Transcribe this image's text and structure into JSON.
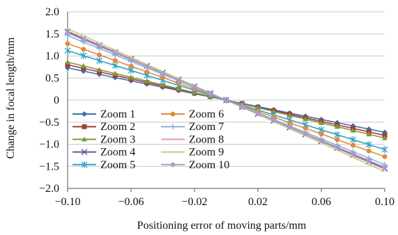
{
  "chart_data": {
    "type": "line",
    "title": "",
    "xlabel": "Positioning error of moving parts/mm",
    "ylabel": "Change in focal length/mm",
    "xlim": [
      -0.1,
      0.1
    ],
    "ylim": [
      -2.0,
      2.0
    ],
    "xticks": [
      -0.1,
      -0.06,
      -0.02,
      0.02,
      0.06,
      0.1
    ],
    "xtick_labels": [
      "−0.10",
      "−0.06",
      "−0.02",
      "0.02",
      "0.06",
      "0.10"
    ],
    "yticks": [
      2.0,
      1.5,
      1.0,
      0.5,
      0,
      -0.5,
      -1.0,
      -1.5,
      -2.0
    ],
    "ytick_labels": [
      "2.0",
      "1.5",
      "1.0",
      "0.5",
      "0",
      "−0.5",
      "−1.0",
      "−1.5",
      "−2.0"
    ],
    "grid": "horizontal",
    "legend_position": "lower-left",
    "x": [
      -0.1,
      -0.09,
      -0.08,
      -0.07,
      -0.06,
      -0.05,
      -0.04,
      -0.03,
      -0.02,
      -0.01,
      0,
      0.01,
      0.02,
      0.03,
      0.04,
      0.05,
      0.06,
      0.07,
      0.08,
      0.09,
      0.1
    ],
    "series": [
      {
        "name": "Zoom 1",
        "slope": -7.3,
        "color": "#3e6ea8",
        "marker": "diamond"
      },
      {
        "name": "Zoom 2",
        "slope": -8.0,
        "color": "#a23c3c",
        "marker": "square"
      },
      {
        "name": "Zoom 3",
        "slope": -8.6,
        "color": "#7f9a3a",
        "marker": "triangle"
      },
      {
        "name": "Zoom 4",
        "slope": -15.5,
        "color": "#6a4f97",
        "marker": "x"
      },
      {
        "name": "Zoom 5",
        "slope": -11.2,
        "color": "#2fa3c5",
        "marker": "star"
      },
      {
        "name": "Zoom 6",
        "slope": -12.8,
        "color": "#e08a3c",
        "marker": "circle"
      },
      {
        "name": "Zoom 7",
        "slope": -14.6,
        "color": "#8bb3da",
        "marker": "plus"
      },
      {
        "name": "Zoom 8",
        "slope": -15.7,
        "color": "#e2a09a",
        "marker": "none"
      },
      {
        "name": "Zoom 9",
        "slope": -16.2,
        "color": "#b9d18a",
        "marker": "none"
      },
      {
        "name": "Zoom 10",
        "slope": -15.2,
        "color": "#a99bd0",
        "marker": "diamond"
      }
    ]
  }
}
